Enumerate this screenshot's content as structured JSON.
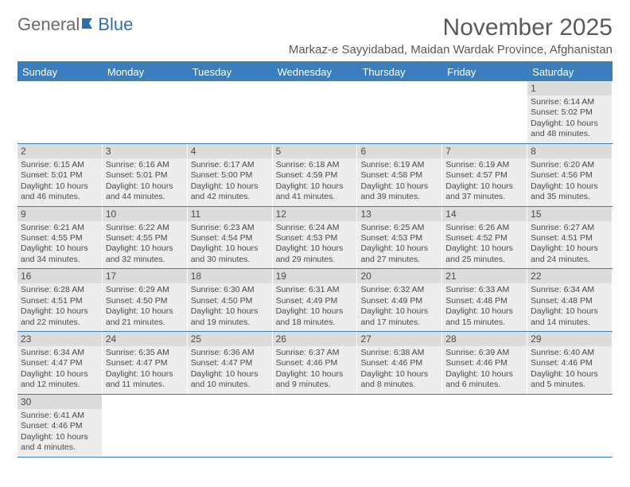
{
  "logo": {
    "part1": "General",
    "part2": "Blue"
  },
  "title": "November 2025",
  "subtitle": "Markaz-e Sayyidabad, Maidan Wardak Province, Afghanistan",
  "colors": {
    "header_bg": "#3b7ec0",
    "header_text": "#ffffff",
    "cell_bg": "#ededed",
    "daynum_bg": "#dcdcdc",
    "rule": "#3b7ec0",
    "text": "#4a4a4a"
  },
  "day_names": [
    "Sunday",
    "Monday",
    "Tuesday",
    "Wednesday",
    "Thursday",
    "Friday",
    "Saturday"
  ],
  "weeks": [
    [
      {
        "n": null
      },
      {
        "n": null
      },
      {
        "n": null
      },
      {
        "n": null
      },
      {
        "n": null
      },
      {
        "n": null
      },
      {
        "n": "1",
        "sr": "Sunrise: 6:14 AM",
        "ss": "Sunset: 5:02 PM",
        "d1": "Daylight: 10 hours",
        "d2": "and 48 minutes."
      }
    ],
    [
      {
        "n": "2",
        "sr": "Sunrise: 6:15 AM",
        "ss": "Sunset: 5:01 PM",
        "d1": "Daylight: 10 hours",
        "d2": "and 46 minutes."
      },
      {
        "n": "3",
        "sr": "Sunrise: 6:16 AM",
        "ss": "Sunset: 5:01 PM",
        "d1": "Daylight: 10 hours",
        "d2": "and 44 minutes."
      },
      {
        "n": "4",
        "sr": "Sunrise: 6:17 AM",
        "ss": "Sunset: 5:00 PM",
        "d1": "Daylight: 10 hours",
        "d2": "and 42 minutes."
      },
      {
        "n": "5",
        "sr": "Sunrise: 6:18 AM",
        "ss": "Sunset: 4:59 PM",
        "d1": "Daylight: 10 hours",
        "d2": "and 41 minutes."
      },
      {
        "n": "6",
        "sr": "Sunrise: 6:19 AM",
        "ss": "Sunset: 4:58 PM",
        "d1": "Daylight: 10 hours",
        "d2": "and 39 minutes."
      },
      {
        "n": "7",
        "sr": "Sunrise: 6:19 AM",
        "ss": "Sunset: 4:57 PM",
        "d1": "Daylight: 10 hours",
        "d2": "and 37 minutes."
      },
      {
        "n": "8",
        "sr": "Sunrise: 6:20 AM",
        "ss": "Sunset: 4:56 PM",
        "d1": "Daylight: 10 hours",
        "d2": "and 35 minutes."
      }
    ],
    [
      {
        "n": "9",
        "sr": "Sunrise: 6:21 AM",
        "ss": "Sunset: 4:55 PM",
        "d1": "Daylight: 10 hours",
        "d2": "and 34 minutes."
      },
      {
        "n": "10",
        "sr": "Sunrise: 6:22 AM",
        "ss": "Sunset: 4:55 PM",
        "d1": "Daylight: 10 hours",
        "d2": "and 32 minutes."
      },
      {
        "n": "11",
        "sr": "Sunrise: 6:23 AM",
        "ss": "Sunset: 4:54 PM",
        "d1": "Daylight: 10 hours",
        "d2": "and 30 minutes."
      },
      {
        "n": "12",
        "sr": "Sunrise: 6:24 AM",
        "ss": "Sunset: 4:53 PM",
        "d1": "Daylight: 10 hours",
        "d2": "and 29 minutes."
      },
      {
        "n": "13",
        "sr": "Sunrise: 6:25 AM",
        "ss": "Sunset: 4:53 PM",
        "d1": "Daylight: 10 hours",
        "d2": "and 27 minutes."
      },
      {
        "n": "14",
        "sr": "Sunrise: 6:26 AM",
        "ss": "Sunset: 4:52 PM",
        "d1": "Daylight: 10 hours",
        "d2": "and 25 minutes."
      },
      {
        "n": "15",
        "sr": "Sunrise: 6:27 AM",
        "ss": "Sunset: 4:51 PM",
        "d1": "Daylight: 10 hours",
        "d2": "and 24 minutes."
      }
    ],
    [
      {
        "n": "16",
        "sr": "Sunrise: 6:28 AM",
        "ss": "Sunset: 4:51 PM",
        "d1": "Daylight: 10 hours",
        "d2": "and 22 minutes."
      },
      {
        "n": "17",
        "sr": "Sunrise: 6:29 AM",
        "ss": "Sunset: 4:50 PM",
        "d1": "Daylight: 10 hours",
        "d2": "and 21 minutes."
      },
      {
        "n": "18",
        "sr": "Sunrise: 6:30 AM",
        "ss": "Sunset: 4:50 PM",
        "d1": "Daylight: 10 hours",
        "d2": "and 19 minutes."
      },
      {
        "n": "19",
        "sr": "Sunrise: 6:31 AM",
        "ss": "Sunset: 4:49 PM",
        "d1": "Daylight: 10 hours",
        "d2": "and 18 minutes."
      },
      {
        "n": "20",
        "sr": "Sunrise: 6:32 AM",
        "ss": "Sunset: 4:49 PM",
        "d1": "Daylight: 10 hours",
        "d2": "and 17 minutes."
      },
      {
        "n": "21",
        "sr": "Sunrise: 6:33 AM",
        "ss": "Sunset: 4:48 PM",
        "d1": "Daylight: 10 hours",
        "d2": "and 15 minutes."
      },
      {
        "n": "22",
        "sr": "Sunrise: 6:34 AM",
        "ss": "Sunset: 4:48 PM",
        "d1": "Daylight: 10 hours",
        "d2": "and 14 minutes."
      }
    ],
    [
      {
        "n": "23",
        "sr": "Sunrise: 6:34 AM",
        "ss": "Sunset: 4:47 PM",
        "d1": "Daylight: 10 hours",
        "d2": "and 12 minutes."
      },
      {
        "n": "24",
        "sr": "Sunrise: 6:35 AM",
        "ss": "Sunset: 4:47 PM",
        "d1": "Daylight: 10 hours",
        "d2": "and 11 minutes."
      },
      {
        "n": "25",
        "sr": "Sunrise: 6:36 AM",
        "ss": "Sunset: 4:47 PM",
        "d1": "Daylight: 10 hours",
        "d2": "and 10 minutes."
      },
      {
        "n": "26",
        "sr": "Sunrise: 6:37 AM",
        "ss": "Sunset: 4:46 PM",
        "d1": "Daylight: 10 hours",
        "d2": "and 9 minutes."
      },
      {
        "n": "27",
        "sr": "Sunrise: 6:38 AM",
        "ss": "Sunset: 4:46 PM",
        "d1": "Daylight: 10 hours",
        "d2": "and 8 minutes."
      },
      {
        "n": "28",
        "sr": "Sunrise: 6:39 AM",
        "ss": "Sunset: 4:46 PM",
        "d1": "Daylight: 10 hours",
        "d2": "and 6 minutes."
      },
      {
        "n": "29",
        "sr": "Sunrise: 6:40 AM",
        "ss": "Sunset: 4:46 PM",
        "d1": "Daylight: 10 hours",
        "d2": "and 5 minutes."
      }
    ],
    [
      {
        "n": "30",
        "sr": "Sunrise: 6:41 AM",
        "ss": "Sunset: 4:46 PM",
        "d1": "Daylight: 10 hours",
        "d2": "and 4 minutes."
      },
      {
        "n": null
      },
      {
        "n": null
      },
      {
        "n": null
      },
      {
        "n": null
      },
      {
        "n": null
      },
      {
        "n": null
      }
    ]
  ]
}
